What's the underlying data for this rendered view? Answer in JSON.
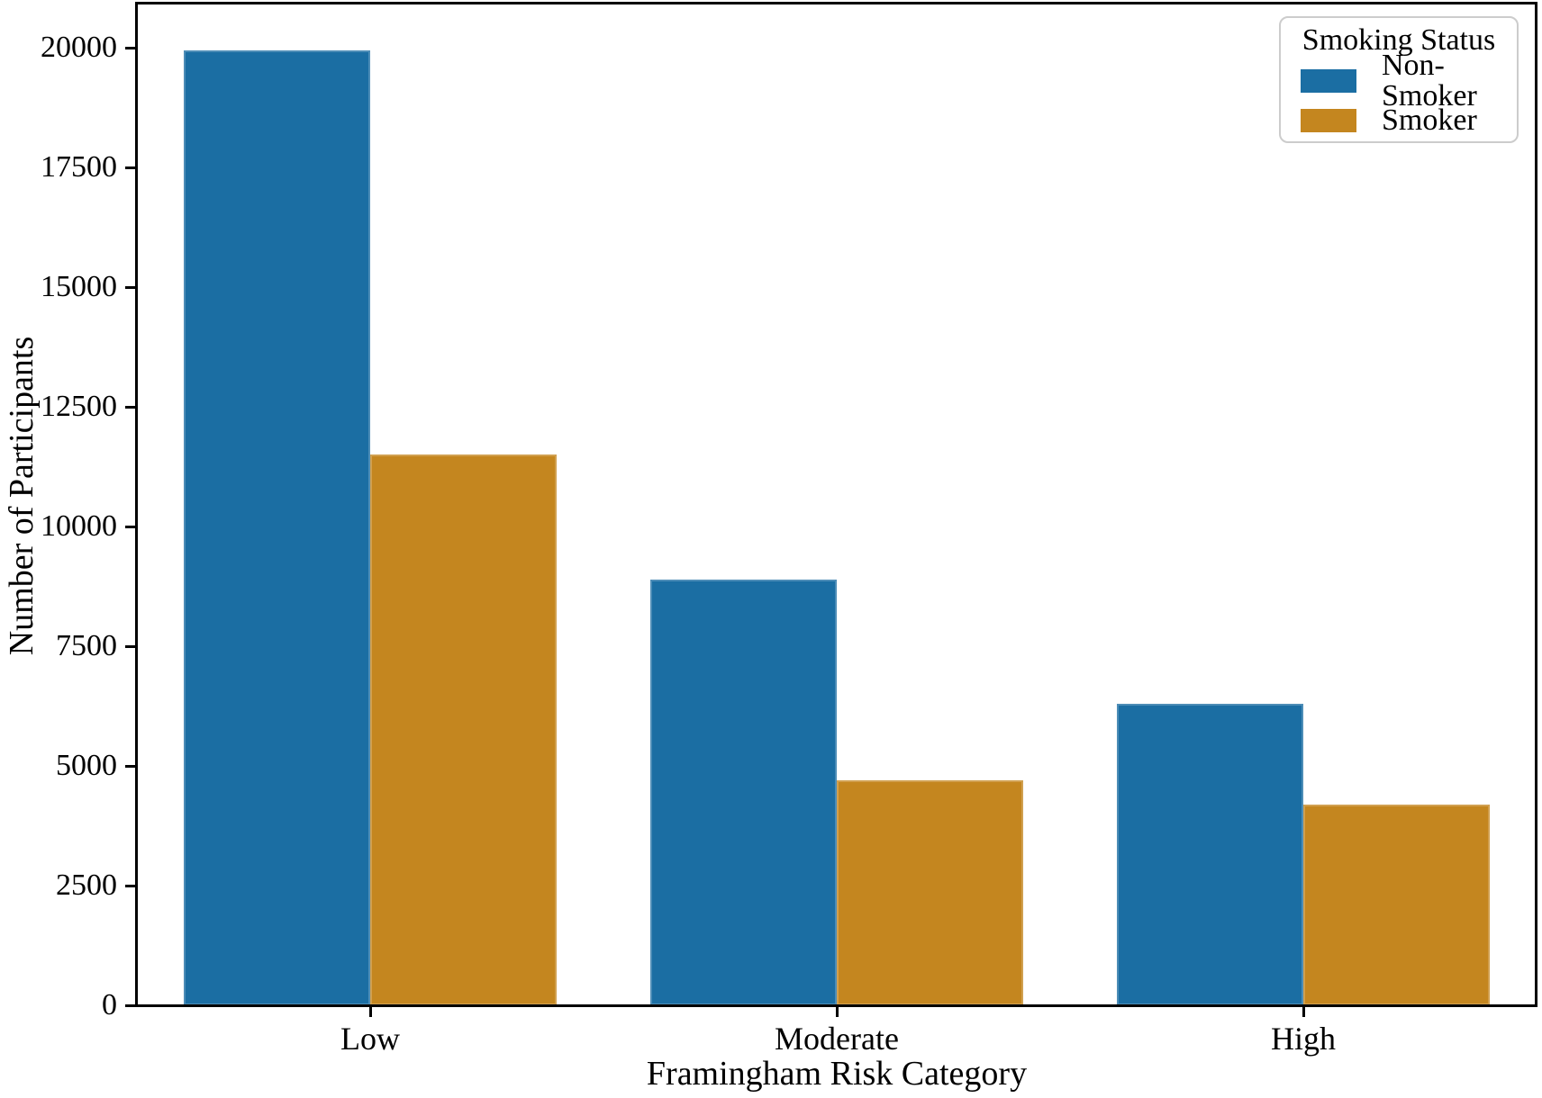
{
  "chart_data": {
    "type": "bar",
    "categories": [
      "Low",
      "Moderate",
      "High"
    ],
    "series": [
      {
        "name": "Non-Smoker",
        "color": "#1B6EA3",
        "values": [
          19950,
          8900,
          6300
        ]
      },
      {
        "name": "Smoker",
        "color": "#C4861F",
        "values": [
          11500,
          4700,
          4200
        ]
      }
    ],
    "xlabel": "Framingham Risk Category",
    "ylabel": "Number of Participants",
    "ylim": [
      0,
      20940
    ],
    "yticks": [
      0,
      2500,
      5000,
      7500,
      10000,
      12500,
      15000,
      17500,
      20000
    ],
    "bar_group_width": 0.8,
    "grid": false,
    "axis_color": "#000000",
    "legend": {
      "title": "Smoking Status",
      "position": "upper-right",
      "border_color": "#CCCCCC"
    }
  }
}
